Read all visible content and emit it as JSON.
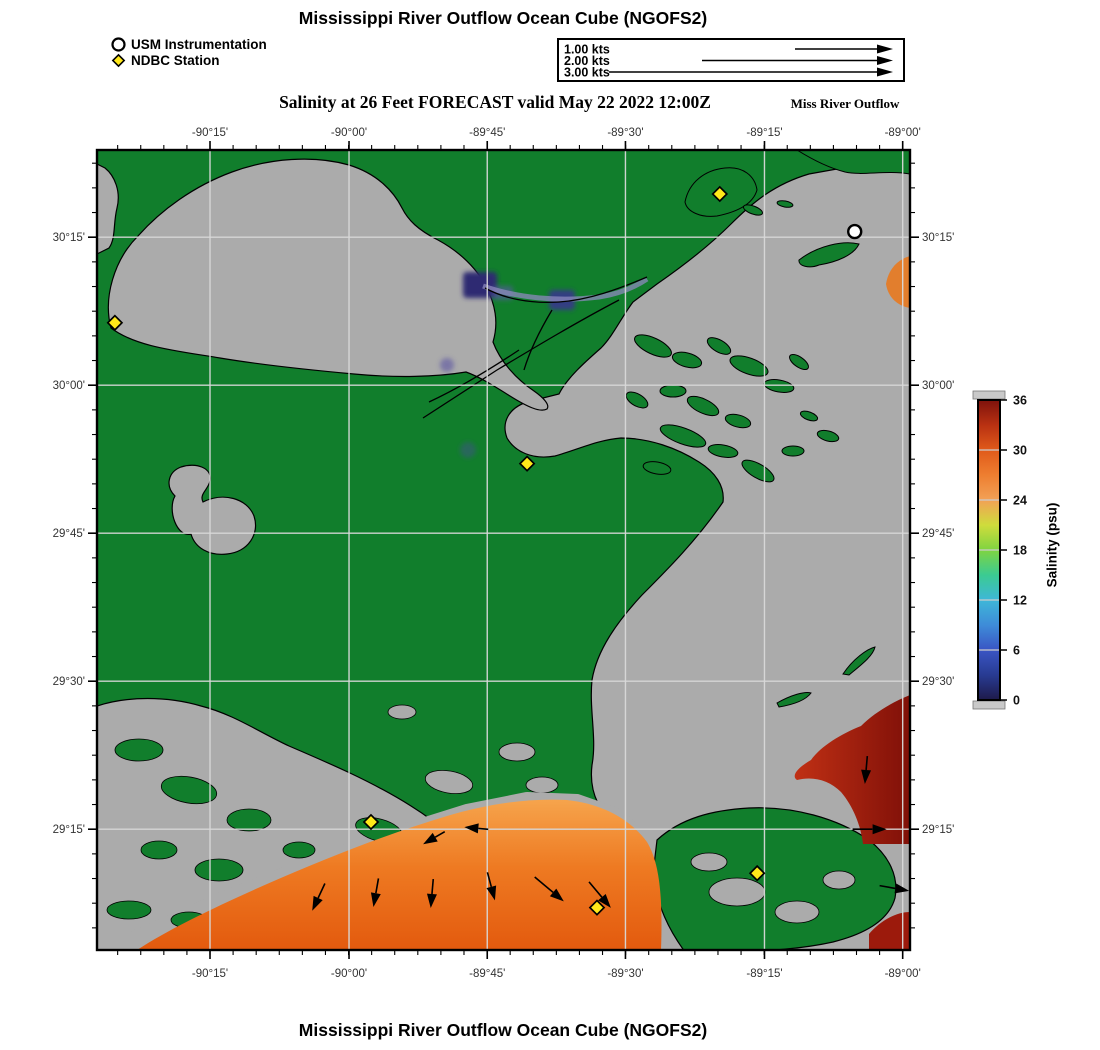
{
  "header": {
    "title": "Mississippi River Outflow Ocean Cube (NGOFS2)"
  },
  "footer": {
    "title": "Mississippi River Outflow Ocean Cube (NGOFS2)"
  },
  "subtitle": {
    "text": "Salinity at 26 Feet FORECAST valid May 22 2022 12:00Z",
    "right_label": "Miss River Outflow"
  },
  "legend": {
    "items": [
      {
        "symbol": "circle",
        "label": "USM Instrumentation"
      },
      {
        "symbol": "diamond",
        "label": "NDBC Station"
      }
    ]
  },
  "speed_scale": {
    "rows": [
      {
        "label": "1.00 kts",
        "kts": 1
      },
      {
        "label": "2.00 kts",
        "kts": 2
      },
      {
        "label": "3.00 kts",
        "kts": 3
      }
    ]
  },
  "axes": {
    "lon": {
      "labels": [
        "-90°15'",
        "-90°00'",
        "-89°45'",
        "-89°30'",
        "-89°15'",
        "-89°00'"
      ],
      "fractions": [
        0.139,
        0.31,
        0.48,
        0.65,
        0.821,
        0.991
      ],
      "minor_per_major": 6
    },
    "lat": {
      "labels": [
        "30°15'",
        "30°00'",
        "29°45'",
        "29°30'",
        "29°15'"
      ],
      "fractions": [
        0.109,
        0.294,
        0.479,
        0.664,
        0.849
      ],
      "minor_per_major": 6
    }
  },
  "colorbar": {
    "title": "Salinity (psu)",
    "min": 0,
    "max": 36,
    "ticks": [
      0,
      6,
      12,
      18,
      24,
      30,
      36
    ],
    "stops": [
      {
        "v": 0,
        "c": "#1E1A4A"
      },
      {
        "v": 3,
        "c": "#283B92"
      },
      {
        "v": 6,
        "c": "#3A55C4"
      },
      {
        "v": 9,
        "c": "#3E8CD8"
      },
      {
        "v": 12,
        "c": "#3EB7D8"
      },
      {
        "v": 15,
        "c": "#3BCB92"
      },
      {
        "v": 18,
        "c": "#7FD441"
      },
      {
        "v": 21,
        "c": "#CFDC3C"
      },
      {
        "v": 24,
        "c": "#F2A156"
      },
      {
        "v": 27,
        "c": "#EE7E30"
      },
      {
        "v": 30,
        "c": "#E05A1A"
      },
      {
        "v": 33,
        "c": "#B93112"
      },
      {
        "v": 36,
        "c": "#7E120C"
      }
    ]
  },
  "map": {
    "colors": {
      "water": "#117E2C",
      "land": "#ABABAB",
      "gridline": "#D9D9D9",
      "coast": "#000000",
      "station_yellow": "#FFE81A",
      "plume_orange": "#EC6D17",
      "high_salinity_red": "#8C1208",
      "low_salinity_navy": "#2F2A72"
    },
    "stations": {
      "usm": [
        {
          "fx": 0.932,
          "fy": 0.102
        }
      ],
      "ndbc": [
        {
          "fx": 0.766,
          "fy": 0.055
        },
        {
          "fx": 0.022,
          "fy": 0.216
        },
        {
          "fx": 0.529,
          "fy": 0.392
        },
        {
          "fx": 0.337,
          "fy": 0.84
        },
        {
          "fx": 0.812,
          "fy": 0.904
        },
        {
          "fx": 0.615,
          "fy": 0.947
        }
      ]
    },
    "current_vectors": [
      {
        "fx": 0.272,
        "fy": 0.935,
        "deg": 115,
        "len": 16
      },
      {
        "fx": 0.343,
        "fy": 0.929,
        "deg": 100,
        "len": 15
      },
      {
        "fx": 0.412,
        "fy": 0.93,
        "deg": 95,
        "len": 15
      },
      {
        "fx": 0.485,
        "fy": 0.921,
        "deg": 75,
        "len": 15
      },
      {
        "fx": 0.416,
        "fy": 0.859,
        "deg": 150,
        "len": 11
      },
      {
        "fx": 0.469,
        "fy": 0.848,
        "deg": 185,
        "len": 10
      },
      {
        "fx": 0.561,
        "fy": 0.928,
        "deg": 40,
        "len": 24
      },
      {
        "fx": 0.621,
        "fy": 0.934,
        "deg": 50,
        "len": 20
      },
      {
        "fx": 0.954,
        "fy": 0.849,
        "deg": 0,
        "len": 20
      },
      {
        "fx": 0.946,
        "fy": 0.775,
        "deg": 95,
        "len": 14
      },
      {
        "fx": 0.982,
        "fy": 0.923,
        "deg": 10,
        "len": 16
      }
    ]
  }
}
